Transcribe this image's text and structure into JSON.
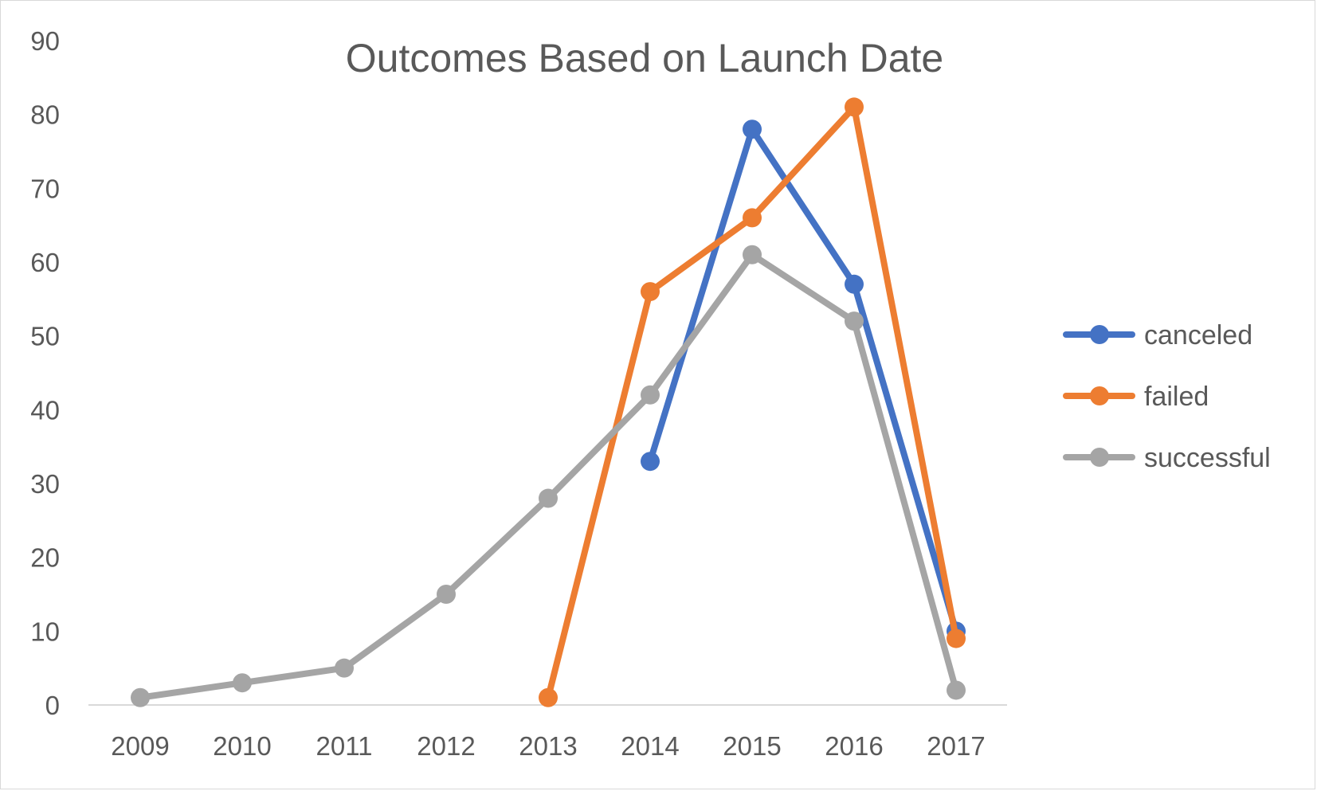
{
  "chart_data": {
    "type": "line",
    "title": "Outcomes Based on Launch Date",
    "xlabel": "",
    "ylabel": "",
    "categories": [
      "2009",
      "2010",
      "2011",
      "2012",
      "2013",
      "2014",
      "2015",
      "2016",
      "2017"
    ],
    "ylim": [
      0,
      90
    ],
    "yticks": [
      0,
      10,
      20,
      30,
      40,
      50,
      60,
      70,
      80,
      90
    ],
    "grid": false,
    "legend": "right",
    "series": [
      {
        "name": "canceled",
        "color": "#4472c4",
        "values": [
          null,
          null,
          null,
          null,
          null,
          33,
          78,
          57,
          10
        ]
      },
      {
        "name": "failed",
        "color": "#ed7d31",
        "values": [
          null,
          null,
          null,
          null,
          1,
          56,
          66,
          81,
          9
        ]
      },
      {
        "name": "successful",
        "color": "#a5a5a5",
        "values": [
          1,
          3,
          5,
          15,
          28,
          42,
          61,
          52,
          2
        ]
      }
    ]
  }
}
